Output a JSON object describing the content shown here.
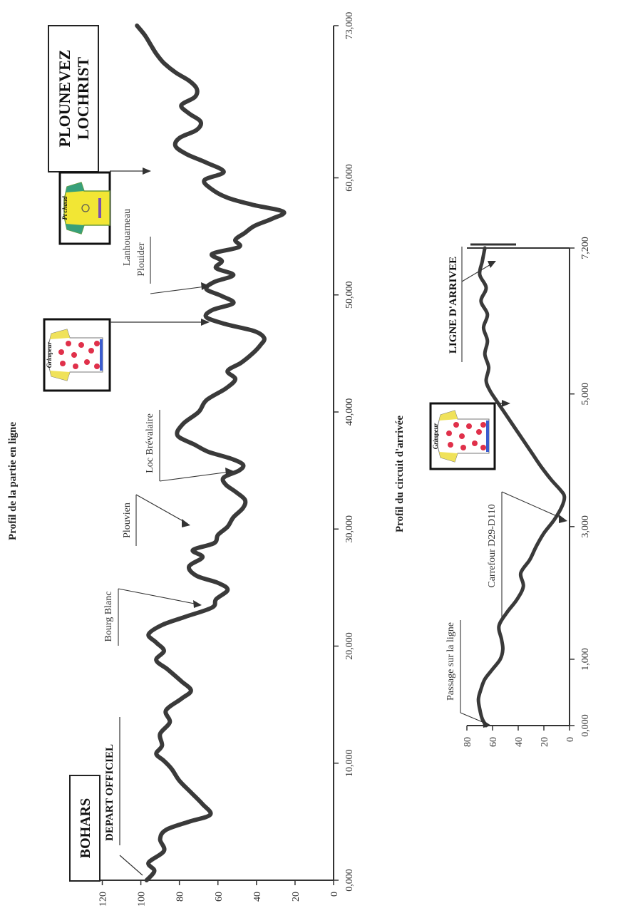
{
  "chart_data": [
    {
      "type": "line",
      "title": "Profil de la partie en ligne",
      "x_ticks": [
        "0,000",
        "10,000",
        "20,000",
        "30,000",
        "40,000",
        "50,000",
        "60,000",
        "73,000"
      ],
      "y_ticks": [
        "0",
        "20",
        "40",
        "60",
        "80",
        "100",
        "120"
      ],
      "xlim": [
        0,
        73000
      ],
      "ylim": [
        0,
        125
      ],
      "x": [
        0,
        800,
        1500,
        2500,
        3500,
        4300,
        5000,
        5600,
        6500,
        7500,
        8500,
        9500,
        10200,
        10800,
        11500,
        12500,
        13500,
        14500,
        15500,
        16200,
        17000,
        18000,
        18800,
        19600,
        20300,
        21000,
        21800,
        22500,
        23300,
        24000,
        24800,
        25400,
        26000,
        26800,
        27600,
        28200,
        28800,
        29500,
        30200,
        31000,
        31800,
        32500,
        33200,
        33800,
        34400,
        35000,
        35500,
        36000,
        36600,
        37200,
        38000,
        39000,
        40000,
        41000,
        42000,
        42800,
        43500,
        44200,
        45000,
        45700,
        46300,
        46900,
        47500,
        48100,
        48700,
        49300,
        49900,
        50500,
        51100,
        51700,
        52300,
        52900,
        53500,
        54100,
        54700,
        55300,
        55900,
        56500,
        57100,
        57700,
        58300,
        59000,
        59800,
        60500,
        61300,
        62000,
        62700,
        63400,
        64100,
        64800,
        65500,
        66200,
        66900,
        67600,
        68300,
        69000,
        69800,
        70600,
        71400,
        72200,
        73000
      ],
      "y": [
        97,
        93,
        96,
        88,
        90,
        87,
        75,
        64,
        68,
        74,
        80,
        84,
        88,
        92,
        89,
        90,
        85,
        87,
        79,
        74,
        79,
        86,
        92,
        88,
        92,
        96,
        89,
        77,
        63,
        61,
        55,
        60,
        71,
        75,
        68,
        73,
        62,
        60,
        55,
        52,
        47,
        46,
        51,
        56,
        57,
        49,
        47,
        53,
        65,
        72,
        81,
        78,
        70,
        66,
        56,
        51,
        55,
        48,
        42,
        38,
        36,
        41,
        56,
        66,
        63,
        52,
        58,
        66,
        62,
        52,
        61,
        58,
        63,
        49,
        51,
        46,
        41,
        32,
        26,
        42,
        55,
        63,
        67,
        57,
        66,
        76,
        82,
        80,
        71,
        69,
        75,
        79,
        72,
        71,
        75,
        82,
        88,
        92,
        95,
        98,
        102
      ],
      "annotations": [
        {
          "label": "BOHARS",
          "x": 0
        },
        {
          "label": "DEPART OFFICIEL",
          "x": 600
        },
        {
          "label": "Bourg Blanc",
          "x": 23300
        },
        {
          "label": "Plouvien",
          "x": 29500
        },
        {
          "label": "Loc Brévalaire",
          "x": 33200
        },
        {
          "label": "Plouider",
          "x": 50500
        },
        {
          "label": "Lanhouarneau",
          "x": 50500
        },
        {
          "label": "PLOUNEVEZ LOCHRIST",
          "x": 73000
        }
      ],
      "jerseys": [
        {
          "caption": "Grimpeur",
          "x": 47500,
          "color": "red-polka-dot"
        },
        {
          "caption": "Pt chaud",
          "x": 59800,
          "color": "yellow"
        }
      ]
    },
    {
      "type": "line",
      "title": "Profil du circuit d'arrivée",
      "x_ticks": [
        "0,000",
        "1,000",
        "3,000",
        "5,000",
        "7,200"
      ],
      "y_ticks": [
        "0",
        "20",
        "40",
        "60",
        "80"
      ],
      "xlim": [
        0,
        7200
      ],
      "ylim": [
        0,
        80
      ],
      "x": [
        0,
        100,
        250,
        400,
        550,
        700,
        850,
        1000,
        1150,
        1300,
        1500,
        1700,
        1900,
        2100,
        2300,
        2500,
        2700,
        2900,
        3100,
        3300,
        3450,
        3550,
        3700,
        3900,
        4100,
        4300,
        4500,
        4700,
        4900,
        5050,
        5200,
        5400,
        5600,
        5800,
        6000,
        6200,
        6400,
        6600,
        6800,
        7000,
        7200
      ],
      "y": [
        65,
        68,
        70,
        71,
        69,
        66,
        60,
        54,
        52,
        53,
        55,
        49,
        41,
        36,
        38,
        31,
        26,
        20,
        12,
        6,
        4,
        7,
        14,
        22,
        29,
        36,
        43,
        50,
        57,
        62,
        65,
        63,
        66,
        64,
        67,
        64,
        69,
        65,
        70,
        68,
        66
      ],
      "annotations": [
        {
          "label": "Passage sur la ligne",
          "x": 0
        },
        {
          "label": "Carrefour D29-D110",
          "x": 3200
        },
        {
          "label": "LIGNE D'ARRIVEE",
          "x": 7200
        }
      ],
      "jerseys": [
        {
          "caption": "Grimpeur",
          "x": 5000,
          "color": "red-polka-dot"
        }
      ]
    }
  ]
}
